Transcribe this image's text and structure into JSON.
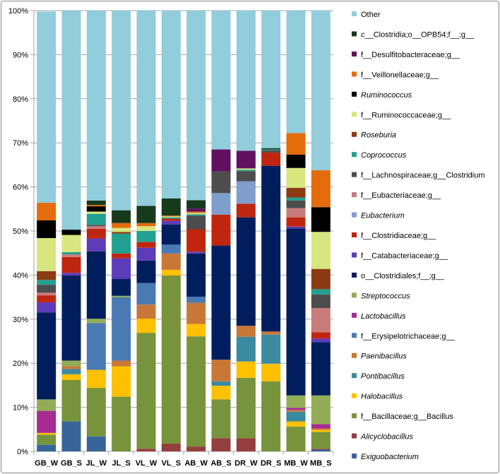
{
  "chart_data": {
    "type": "bar",
    "stacked": true,
    "title": "",
    "xlabel": "",
    "ylabel": "",
    "ylim": [
      0,
      100
    ],
    "yticks": [
      "0%",
      "10%",
      "20%",
      "30%",
      "40%",
      "50%",
      "60%",
      "70%",
      "80%",
      "90%",
      "100%"
    ],
    "grid": true,
    "legend_position": "right",
    "categories": [
      "GB_W",
      "GB_S",
      "JL_W",
      "JL_S",
      "VL_W",
      "VL_S",
      "AB_W",
      "AB_S",
      "DR_W",
      "DR_S",
      "MB_W",
      "MB_S"
    ],
    "series": [
      {
        "name": "Exiguobacterium",
        "italic": true,
        "color": "#386599",
        "values": [
          1.5,
          6.8,
          3.4,
          0,
          0,
          0,
          0,
          0,
          0,
          0,
          0,
          0.4
        ]
      },
      {
        "name": "Alicyclobacillus",
        "italic": true,
        "color": "#943E3E",
        "values": [
          0,
          0,
          0,
          0,
          0.6,
          1.8,
          1.1,
          3.0,
          3.0,
          0,
          0,
          0.2
        ]
      },
      {
        "name": "f__Bacillaceae;g__Bacillus",
        "italic": false,
        "color": "#77933C",
        "values": [
          2.3,
          9.4,
          11.0,
          12.4,
          26.3,
          38.1,
          25.0,
          8.8,
          13.7,
          15.9,
          5.6,
          3.8
        ]
      },
      {
        "name": "Halobacillus",
        "italic": true,
        "color": "#FFC000",
        "values": [
          0.4,
          1.3,
          4.1,
          6.9,
          3.2,
          1.3,
          2.8,
          3.1,
          3.7,
          4.0,
          1.2,
          0.5
        ]
      },
      {
        "name": "Pontibacillus",
        "italic": true,
        "color": "#3A8AA0",
        "values": [
          0,
          1.2,
          0,
          0,
          0,
          0,
          0,
          1.0,
          5.6,
          6.6,
          2.2,
          0
        ]
      },
      {
        "name": "Paenibacillus",
        "italic": true,
        "color": "#C97737",
        "values": [
          0,
          0.6,
          0,
          1.3,
          3.2,
          3.7,
          4.8,
          4.9,
          2.5,
          0.7,
          0.4,
          0.3
        ]
      },
      {
        "name": "f__Erysipelotrichaceae;g__",
        "italic": false,
        "color": "#4A7AB4",
        "values": [
          0,
          0,
          10.6,
          14.4,
          4.9,
          2.0,
          1.4,
          0,
          0,
          0,
          0,
          0
        ]
      },
      {
        "name": "Lactobacillus",
        "italic": true,
        "color": "#A62B93",
        "values": [
          5.0,
          0,
          0,
          0,
          0,
          0,
          0,
          0,
          0,
          0,
          0.5,
          1.0
        ]
      },
      {
        "name": "Streptococcus",
        "italic": true,
        "color": "#92AD55",
        "values": [
          2.6,
          1.3,
          1.0,
          0.3,
          0,
          0,
          0,
          0,
          0,
          0,
          2.8,
          6.5
        ]
      },
      {
        "name": "o__Clostridiales;f__;g__",
        "italic": false,
        "color": "#001E5E",
        "values": [
          19.7,
          19.3,
          15.3,
          3.8,
          5.1,
          4.6,
          9.8,
          25.9,
          24.6,
          37.6,
          37.9,
          12.1
        ]
      },
      {
        "name": "f__Catabacteriaceae;g__",
        "italic": false,
        "color": "#5E3BB8",
        "values": [
          2.3,
          0.6,
          2.9,
          4.7,
          2.9,
          0.8,
          0.4,
          0,
          0,
          0,
          0.4,
          0.8
        ]
      },
      {
        "name": "f__Clostridiaceae;g__",
        "italic": false,
        "color": "#C0260F",
        "values": [
          1.6,
          3.6,
          2.2,
          1.1,
          1.3,
          0.5,
          5.1,
          7.0,
          3.1,
          3.0,
          2.1,
          1.4
        ]
      },
      {
        "name": "Eubacterium",
        "italic": true,
        "color": "#7F9ECC",
        "values": [
          0,
          0,
          0,
          0,
          0,
          0,
          0,
          4.9,
          5.1,
          0,
          0,
          0
        ]
      },
      {
        "name": "f__Eubacteriaceae;g__",
        "italic": false,
        "color": "#C97B7B",
        "values": [
          0.6,
          0.6,
          0.6,
          0,
          0,
          0,
          0,
          0,
          0,
          0,
          2.1,
          5.5
        ]
      },
      {
        "name": "f__Lachnospiraceae;g__Clostridium",
        "italic": false,
        "color": "#4D4D4D",
        "values": [
          1.8,
          0,
          0.3,
          0,
          0,
          0,
          3.1,
          4.9,
          2.3,
          0.5,
          1.7,
          3.1
        ]
      },
      {
        "name": "Coprococcus",
        "italic": true,
        "color": "#22A090",
        "values": [
          1.1,
          0.5,
          2.5,
          4.5,
          2.5,
          0.3,
          0.3,
          0,
          0.3,
          0.2,
          0.7,
          1.2
        ]
      },
      {
        "name": "Roseburia",
        "italic": true,
        "color": "#8B3A12",
        "values": [
          2.0,
          0,
          0,
          0.4,
          0,
          0,
          0,
          0,
          0,
          0,
          2.2,
          4.6
        ]
      },
      {
        "name": "f__Ruminococcaceae;g__",
        "italic": false,
        "color": "#D7E67E",
        "values": [
          7.5,
          3.9,
          0.5,
          0.9,
          1.1,
          0.2,
          0.3,
          0,
          0.3,
          0,
          4.5,
          8.4
        ]
      },
      {
        "name": "Ruminococcus",
        "italic": true,
        "color": "#000000",
        "values": [
          4.0,
          1.2,
          1.2,
          0,
          0,
          0,
          0,
          0,
          0,
          0,
          3.0,
          5.6
        ]
      },
      {
        "name": "f__Veillonellaceae;g__",
        "italic": false,
        "color": "#E46C0A",
        "values": [
          4.0,
          0,
          0.3,
          1.1,
          0.7,
          0.2,
          0.3,
          0,
          0,
          0,
          4.9,
          8.4
        ]
      },
      {
        "name": "f__Desulfitobacteraceae;g__",
        "italic": false,
        "color": "#60105E",
        "values": [
          0,
          0,
          0,
          0,
          0,
          0,
          0.7,
          5.0,
          4.0,
          0,
          0,
          0
        ]
      },
      {
        "name": "c__Clostridia;o__OPB54;f__;g__",
        "italic": false,
        "color": "#17391C",
        "values": [
          0,
          0,
          1.0,
          2.9,
          3.9,
          3.9,
          1.9,
          0,
          0,
          0.3,
          0,
          0
        ]
      },
      {
        "name": "Other",
        "italic": false,
        "color": "#92CDDC",
        "values": [
          43.4,
          49.7,
          43.1,
          45.3,
          44.3,
          42.6,
          43.0,
          31.5,
          31.8,
          31.2,
          27.8,
          36.2
        ]
      }
    ]
  }
}
